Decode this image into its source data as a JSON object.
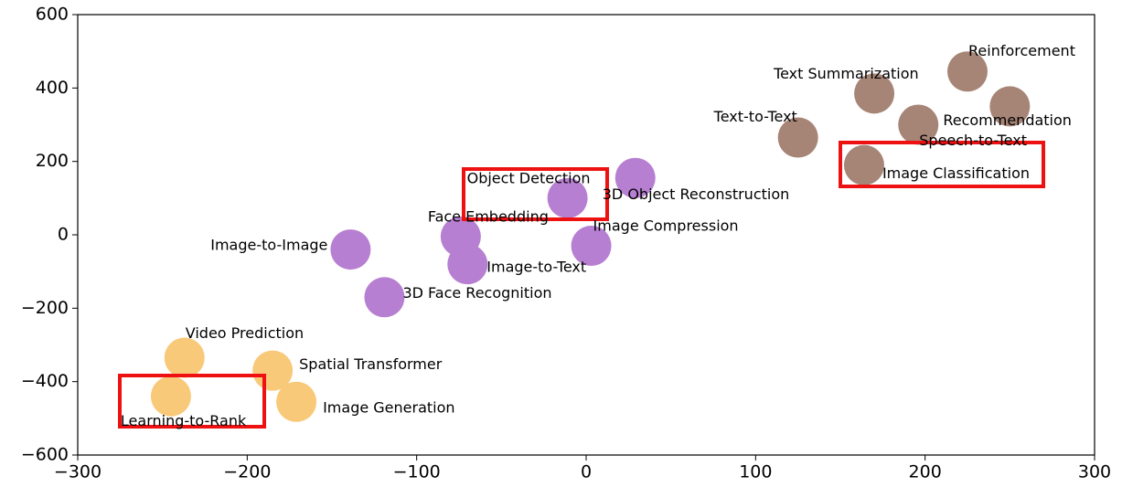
{
  "chart_data": {
    "type": "scatter",
    "xlim": [
      -300,
      300
    ],
    "xticks": [
      {
        "value": -300,
        "label": "−300"
      },
      {
        "value": -200,
        "label": "−200"
      },
      {
        "value": -100,
        "label": "−100"
      },
      0,
      100,
      200,
      300
    ],
    "ylim": [
      -600,
      600
    ],
    "yticks": [
      {
        "value": -600,
        "label": "−600"
      },
      {
        "value": -400,
        "label": "−400"
      },
      {
        "value": -200,
        "label": "−200"
      },
      0,
      200,
      400,
      600
    ],
    "grid": false,
    "series": [
      {
        "color": "#f9c97a",
        "labels": [
          "Video Prediction",
          "Spatial Transformer",
          "Learning-to-Rank",
          "Image Generation"
        ],
        "x": [
          -237,
          -185,
          -245,
          -171
        ],
        "values": [
          -335,
          -370,
          -440,
          -455
        ]
      },
      {
        "color": "#b77fd1",
        "labels": [
          "Image-to-Image",
          "3D Face Recognition",
          "Face Embedding",
          "Image-to-Text",
          "Object Detection",
          "Image Compression",
          "3D Object Reconstruction"
        ],
        "x": [
          -139,
          -119,
          -74,
          -70,
          -11,
          3,
          29
        ],
        "values": [
          -40,
          -170,
          -5,
          -80,
          100,
          -30,
          155
        ]
      },
      {
        "color": "#a68577",
        "labels": [
          "Text-to-Text",
          "Image Classification",
          "Text Summarization",
          "Speech-to-Text",
          "Reinforcement",
          "Recommendation"
        ],
        "x": [
          125,
          164,
          170,
          196,
          225,
          250
        ],
        "values": [
          265,
          190,
          385,
          300,
          445,
          350
        ]
      }
    ]
  }
}
